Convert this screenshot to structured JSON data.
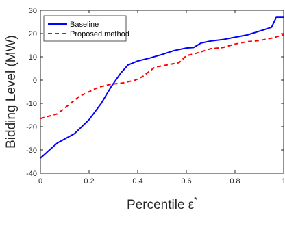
{
  "chart_data": {
    "type": "line",
    "xlabel": "Percentile ε",
    "xlabel_superscript": "*",
    "ylabel": "Bidding Level (MW)",
    "xlim": [
      0,
      1
    ],
    "ylim": [
      -40,
      30
    ],
    "xticks": [
      0,
      0.2,
      0.4,
      0.6,
      0.8,
      1
    ],
    "xtick_labels": [
      "0",
      "0.2",
      "0.4",
      "0.6",
      "0.8",
      "1"
    ],
    "yticks": [
      -40,
      -30,
      -20,
      -10,
      0,
      10,
      20,
      30
    ],
    "ytick_labels": [
      "-40",
      "-30",
      "-20",
      "-10",
      "0",
      "10",
      "20",
      "30"
    ],
    "grid": false,
    "legend_position": "top-left",
    "series": [
      {
        "name": "Baseline",
        "color": "#0000ff",
        "dash": "solid",
        "x": [
          0,
          0.07,
          0.14,
          0.2,
          0.25,
          0.29,
          0.33,
          0.36,
          0.4,
          0.45,
          0.5,
          0.55,
          0.6,
          0.63,
          0.66,
          0.7,
          0.75,
          0.8,
          0.85,
          0.9,
          0.95,
          0.97,
          1
        ],
        "y": [
          -33.5,
          -27,
          -23,
          -17,
          -10,
          -3,
          3,
          6.5,
          8.2,
          9.5,
          11,
          12.7,
          13.8,
          14,
          15.9,
          16.8,
          17.4,
          18.4,
          19.4,
          21,
          22.7,
          27,
          27
        ]
      },
      {
        "name": "Proposed method",
        "color": "#ff0000",
        "dash": "dashed",
        "x": [
          0,
          0.07,
          0.16,
          0.24,
          0.29,
          0.34,
          0.39,
          0.42,
          0.47,
          0.52,
          0.57,
          0.6,
          0.64,
          0.67,
          0.7,
          0.75,
          0.8,
          0.85,
          0.9,
          0.95,
          1
        ],
        "y": [
          -16.5,
          -14.5,
          -7,
          -3,
          -1.8,
          -1.2,
          0,
          1.5,
          5.5,
          6.5,
          7.5,
          10.5,
          11.5,
          12.5,
          13.5,
          14,
          15.5,
          16.5,
          17,
          18,
          19.5
        ]
      }
    ]
  }
}
